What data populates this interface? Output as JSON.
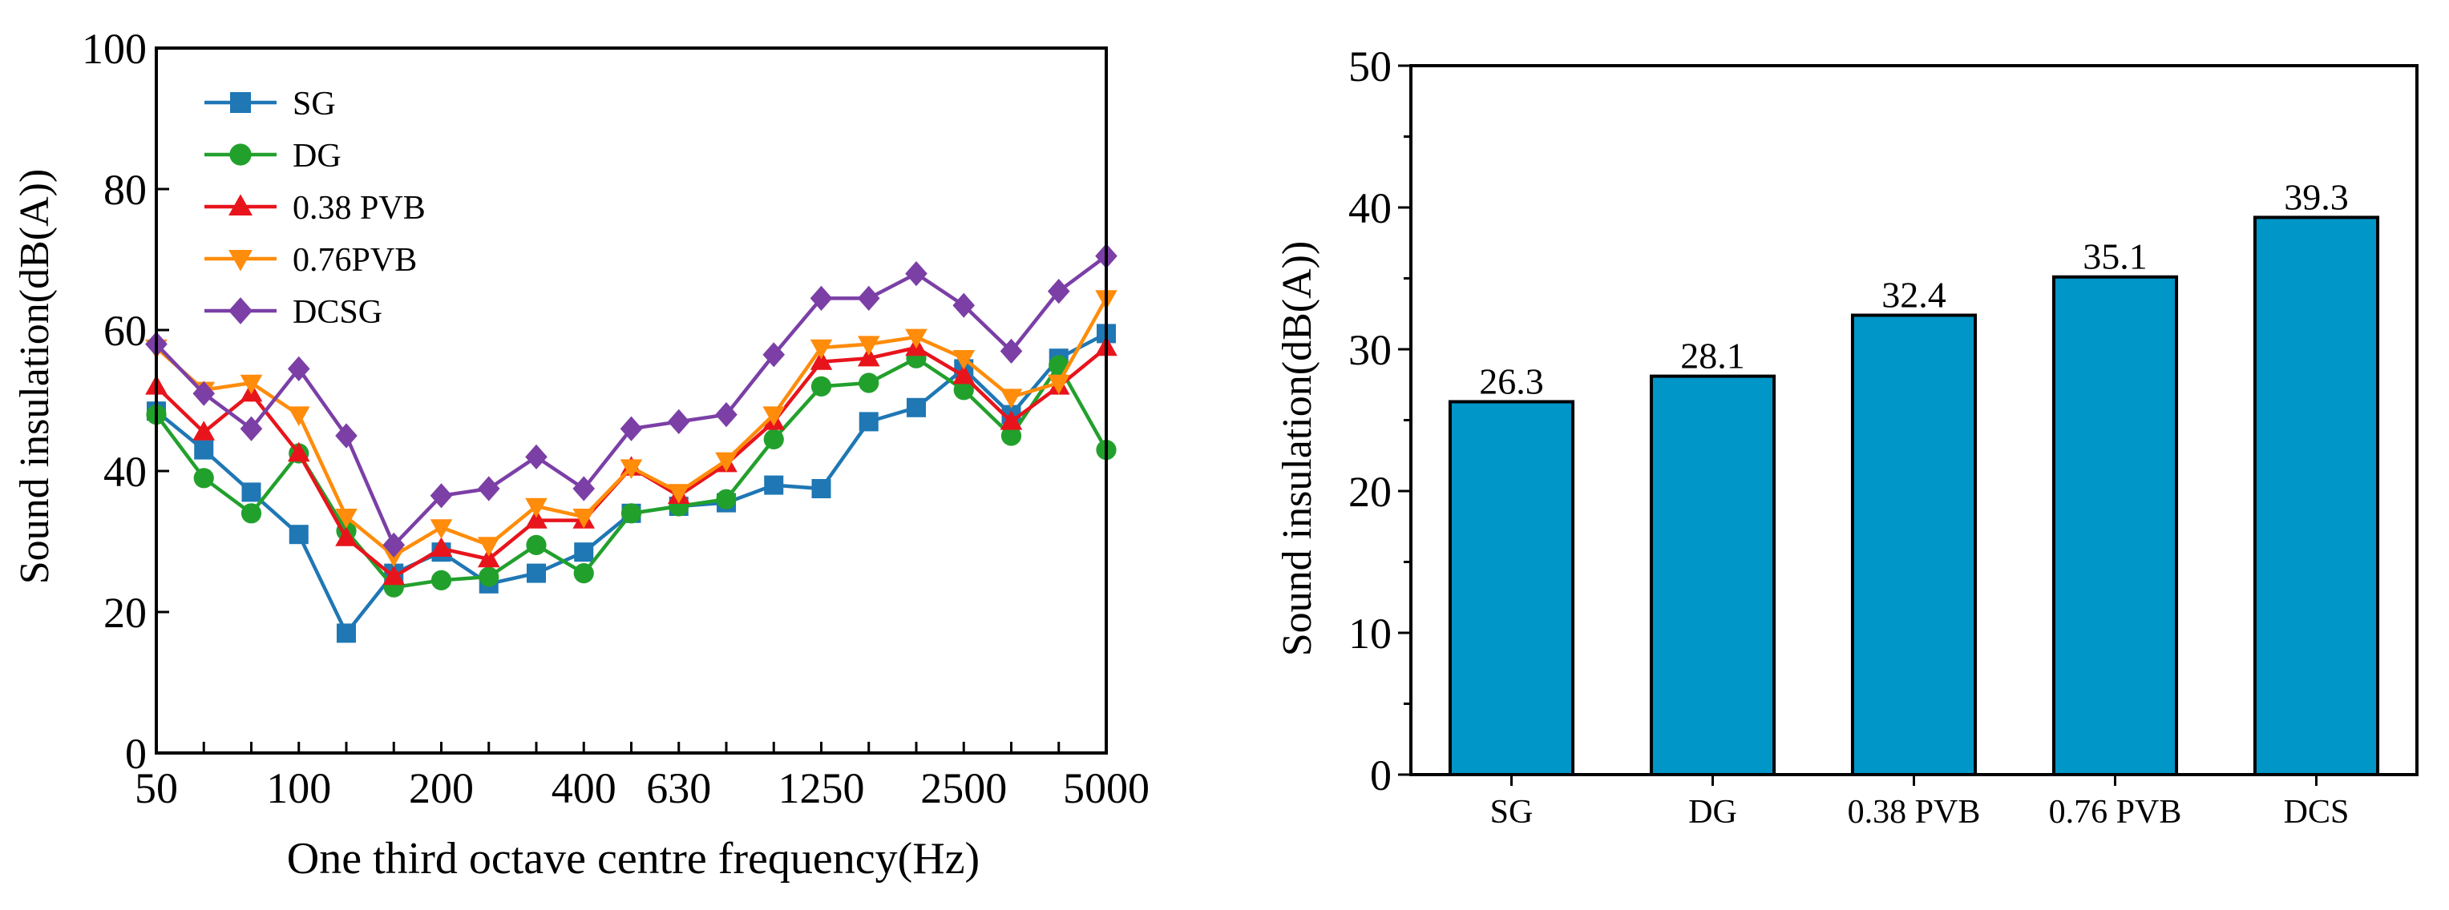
{
  "chart_data": [
    {
      "type": "line",
      "title": "",
      "xlabel": "One third octave centre frequency(Hz)",
      "ylabel": "Sound insulation(dB(A))",
      "ylim": [
        0,
        100
      ],
      "y_ticks": [
        "0",
        "20",
        "40",
        "60",
        "80",
        "100"
      ],
      "x_ticks": [
        {
          "index": 0,
          "label": "50"
        },
        {
          "index": 3,
          "label": "100"
        },
        {
          "index": 6,
          "label": "200"
        },
        {
          "index": 9,
          "label": "400"
        },
        {
          "index": 11,
          "label": "630"
        },
        {
          "index": 14,
          "label": "1250"
        },
        {
          "index": 17,
          "label": "2500"
        },
        {
          "index": 20,
          "label": "5000"
        }
      ],
      "legend_position": "top-left",
      "grid": false,
      "x": [
        50,
        63,
        80,
        100,
        125,
        160,
        200,
        250,
        315,
        400,
        500,
        630,
        800,
        1000,
        1250,
        1600,
        2000,
        2500,
        3150,
        4000,
        5000
      ],
      "series": [
        {
          "name": "SG",
          "color": "#1f77b4",
          "marker": "square",
          "values": [
            48.5,
            43,
            37,
            31,
            17,
            25.5,
            28.5,
            24,
            25.5,
            28.5,
            34,
            35,
            35.5,
            38,
            37.5,
            47,
            49,
            54.5,
            48,
            56,
            59.5
          ]
        },
        {
          "name": "DG",
          "color": "#22a02c",
          "marker": "circle",
          "values": [
            48,
            39,
            34,
            42.5,
            31.5,
            23.5,
            24.5,
            25,
            29.5,
            25.5,
            34,
            35,
            36,
            44.5,
            52,
            52.5,
            56,
            51.5,
            45,
            55,
            43
          ]
        },
        {
          "name": "0.38 PVB",
          "color": "#e8141c",
          "marker": "triangle-up",
          "values": [
            52,
            45.5,
            51,
            42.5,
            30.5,
            25,
            29,
            27.5,
            33,
            33,
            40.5,
            36.5,
            41,
            47,
            55.5,
            56,
            57.5,
            53.5,
            47,
            52,
            57.5
          ]
        },
        {
          "name": "0.76PVB",
          "color": "#ff8c0a",
          "marker": "triangle-down",
          "values": [
            57.5,
            51.5,
            52.5,
            48,
            33.5,
            28,
            32,
            29.5,
            35,
            33.5,
            40.5,
            37,
            41.5,
            48,
            57.5,
            58,
            59,
            56,
            50.5,
            52.5,
            64.5
          ]
        },
        {
          "name": "DCSG",
          "color": "#7b3fa6",
          "marker": "diamond",
          "values": [
            58,
            51,
            46,
            54.5,
            45,
            29.5,
            36.5,
            37.5,
            42,
            37.5,
            46,
            47,
            48,
            56.5,
            64.5,
            64.5,
            68,
            63.5,
            57,
            65.5,
            70.5
          ]
        }
      ]
    },
    {
      "type": "bar",
      "title": "",
      "xlabel": "",
      "ylabel": "Sound insulation(dB(A))",
      "ylim": [
        0,
        50
      ],
      "y_ticks": [
        "0",
        "10",
        "20",
        "30",
        "40",
        "50"
      ],
      "categories": [
        "SG",
        "DG",
        "0.38 PVB",
        "0.76 PVB",
        "DCS"
      ],
      "values": [
        26.3,
        28.1,
        32.4,
        35.1,
        39.3
      ],
      "value_labels": [
        "26.3",
        "28.1",
        "32.4",
        "35.1",
        "39.3"
      ],
      "bar_color": "#0096c8"
    }
  ]
}
